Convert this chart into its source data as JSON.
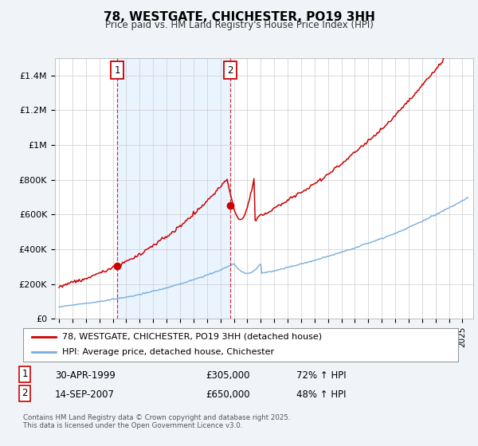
{
  "title": "78, WESTGATE, CHICHESTER, PO19 3HH",
  "subtitle": "Price paid vs. HM Land Registry's House Price Index (HPI)",
  "ylim": [
    0,
    1500000
  ],
  "xlim_start": 1994.7,
  "xlim_end": 2025.8,
  "sale1_year": 1999.33,
  "sale1_price": 305000,
  "sale1_label": "1",
  "sale2_year": 2007.71,
  "sale2_price": 650000,
  "sale2_label": "2",
  "legend_line1": "78, WESTGATE, CHICHESTER, PO19 3HH (detached house)",
  "legend_line2": "HPI: Average price, detached house, Chichester",
  "table_row1": [
    "1",
    "30-APR-1999",
    "£305,000",
    "72% ↑ HPI"
  ],
  "table_row2": [
    "2",
    "14-SEP-2007",
    "£650,000",
    "48% ↑ HPI"
  ],
  "footnote": "Contains HM Land Registry data © Crown copyright and database right 2025.\nThis data is licensed under the Open Government Licence v3.0.",
  "color_red": "#cc0000",
  "color_blue": "#7aaddb",
  "color_shade": "#ddeeff",
  "background_color": "#f0f4f8",
  "plot_bg": "#ffffff"
}
